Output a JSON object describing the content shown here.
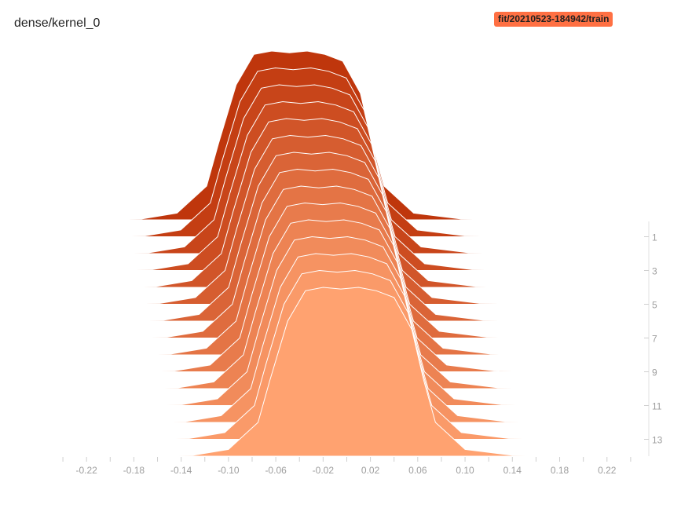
{
  "header": {
    "title": "dense/kernel_0",
    "run_tag": "fit/20210523-184942/train"
  },
  "chart_data": {
    "type": "area",
    "subtype": "histogram-offset",
    "title": "dense/kernel_0",
    "xlim": [
      -0.25,
      0.26
    ],
    "x_ticks": [
      -0.22,
      -0.18,
      -0.14,
      -0.1,
      -0.06,
      -0.02,
      0.02,
      0.06,
      0.1,
      0.14,
      0.18,
      0.22
    ],
    "x_tick_labels": [
      "-0.22",
      "-0.18",
      "-0.14",
      "-0.10",
      "-0.06",
      "-0.02",
      "0.02",
      "0.06",
      "0.10",
      "0.14",
      "0.18",
      "0.22"
    ],
    "step_tick_labels": [
      "1",
      "3",
      "5",
      "7",
      "9",
      "11",
      "13"
    ],
    "steps": [
      0,
      1,
      2,
      3,
      4,
      5,
      6,
      7,
      8,
      9,
      10,
      11,
      12,
      13,
      14
    ],
    "profile": {
      "x": [
        -0.25,
        -0.13,
        -0.1,
        -0.075,
        -0.065,
        -0.05,
        -0.035,
        -0.02,
        -0.005,
        0.01,
        0.025,
        0.04,
        0.055,
        0.065,
        0.075,
        0.1,
        0.14,
        0.26
      ],
      "y": [
        0,
        0.005,
        0.04,
        0.2,
        0.45,
        0.8,
        0.98,
        1.0,
        0.99,
        1.0,
        0.98,
        0.94,
        0.75,
        0.45,
        0.2,
        0.04,
        0.005,
        0
      ]
    },
    "color_old": "#bf360c",
    "color_new": "#ffa270",
    "stroke_color": "#ffffff",
    "grid": false
  }
}
